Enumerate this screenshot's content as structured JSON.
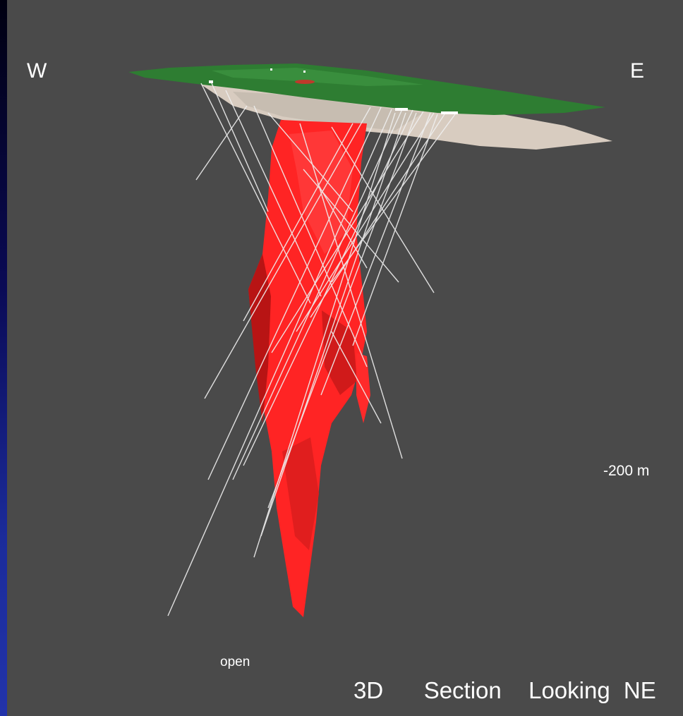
{
  "labels": {
    "west": "W",
    "east": "E",
    "depth": "-200 m",
    "open": "open",
    "caption": "3D   Section  Looking NE"
  },
  "colors": {
    "background": "#4a4a4a",
    "surface": "#2e7d32",
    "overburden": "#d8ccc0",
    "orebody": "#ff2020",
    "drillholes": "#f0f0f0"
  }
}
